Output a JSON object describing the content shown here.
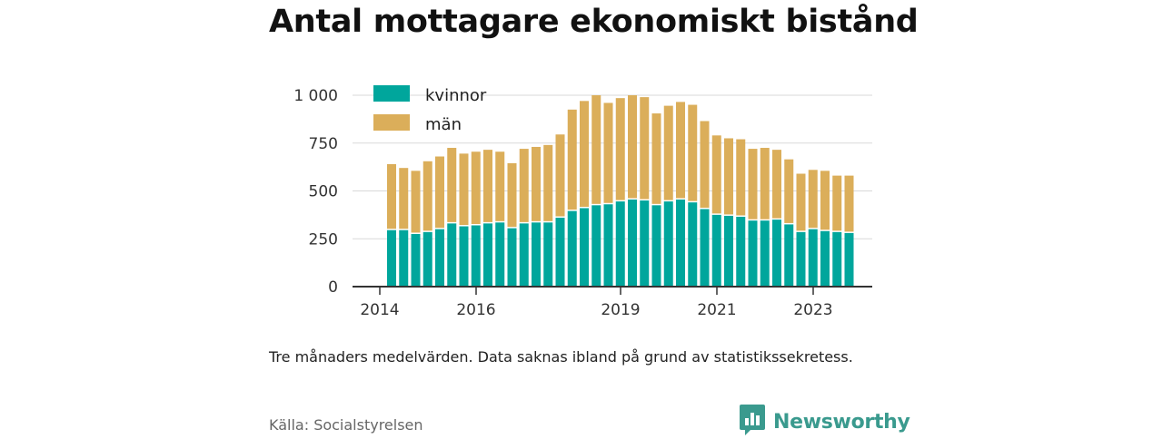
{
  "title": "Antal mottagare ekonomiskt bistånd",
  "note": "Tre månaders medelvärden. Data saknas ibland på grund av statistikssekretess.",
  "source": "Källa: Socialstyrelsen",
  "brand": {
    "name": "Newsworthy",
    "icon": "newsworthy-logo-icon"
  },
  "colors": {
    "kvinnor": "#00a69c",
    "man": "#dbae5a",
    "grid": "#d9d9d9",
    "axis": "#333333",
    "brand": "#3a9a8e"
  },
  "chart_data": {
    "type": "bar",
    "stacked": true,
    "ylim": [
      0,
      1000
    ],
    "yticks": [
      0,
      250,
      500,
      750,
      1000
    ],
    "ytick_labels": [
      "0",
      "250",
      "500",
      "750",
      "1 000"
    ],
    "xtick_labels": [
      "2014",
      "2016",
      "2019",
      "2021",
      "2023"
    ],
    "xtick_positions": [
      0,
      8,
      20,
      28,
      36
    ],
    "grid": true,
    "legend_position": "top-left",
    "x": [
      "2014-Q1",
      "2014-Q2",
      "2014-Q3",
      "2014-Q4",
      "2015-Q1",
      "2015-Q2",
      "2015-Q3",
      "2015-Q4",
      "2016-Q1",
      "2016-Q2",
      "2016-Q3",
      "2016-Q4",
      "2017-Q1",
      "2017-Q2",
      "2017-Q3",
      "2017-Q4",
      "2018-Q1",
      "2018-Q2",
      "2018-Q3",
      "2018-Q4",
      "2019-Q1",
      "2019-Q2",
      "2019-Q3",
      "2019-Q4",
      "2020-Q1",
      "2020-Q2",
      "2020-Q3",
      "2020-Q4",
      "2021-Q1",
      "2021-Q2",
      "2021-Q3",
      "2021-Q4",
      "2022-Q1",
      "2022-Q2",
      "2022-Q3",
      "2022-Q4",
      "2023-Q1",
      "2023-Q2",
      "2023-Q3"
    ],
    "series": [
      {
        "name": "kvinnor",
        "values": [
          295,
          295,
          275,
          285,
          300,
          330,
          315,
          320,
          330,
          335,
          305,
          330,
          335,
          335,
          360,
          395,
          410,
          425,
          430,
          445,
          455,
          450,
          425,
          445,
          455,
          440,
          405,
          375,
          370,
          365,
          345,
          345,
          350,
          325,
          285,
          300,
          290,
          285,
          280
        ]
      },
      {
        "name": "män",
        "values": [
          345,
          325,
          330,
          370,
          380,
          395,
          380,
          385,
          385,
          370,
          340,
          390,
          395,
          405,
          435,
          530,
          560,
          575,
          530,
          540,
          545,
          540,
          480,
          500,
          510,
          510,
          460,
          415,
          405,
          405,
          375,
          380,
          365,
          340,
          305,
          310,
          315,
          295,
          300
        ]
      }
    ]
  }
}
